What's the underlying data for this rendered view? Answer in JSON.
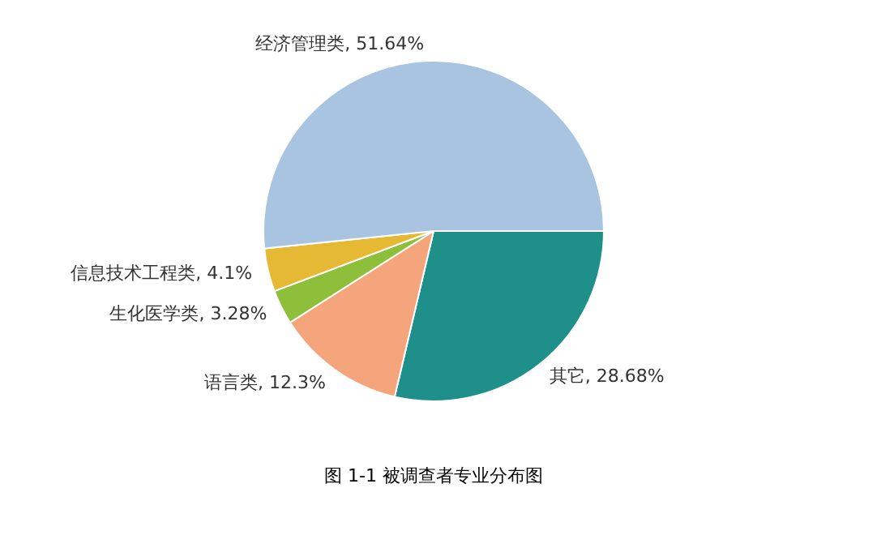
{
  "chart_data": {
    "type": "pie",
    "categories": [
      "其它",
      "语言类",
      "生化医学类",
      "信息技术工程类",
      "经济管理类"
    ],
    "values": [
      28.68,
      12.3,
      3.28,
      4.1,
      51.64
    ],
    "colors": [
      "#1f8f8a",
      "#f4a57c",
      "#8dbf3a",
      "#e6b935",
      "#a8c4e0"
    ],
    "value_labels": [
      "28.68%",
      "12.3%",
      "3.28%",
      "4.1%",
      "51.64%"
    ],
    "annotations": [
      "图 1-1 被调查者专业分布图"
    ]
  }
}
